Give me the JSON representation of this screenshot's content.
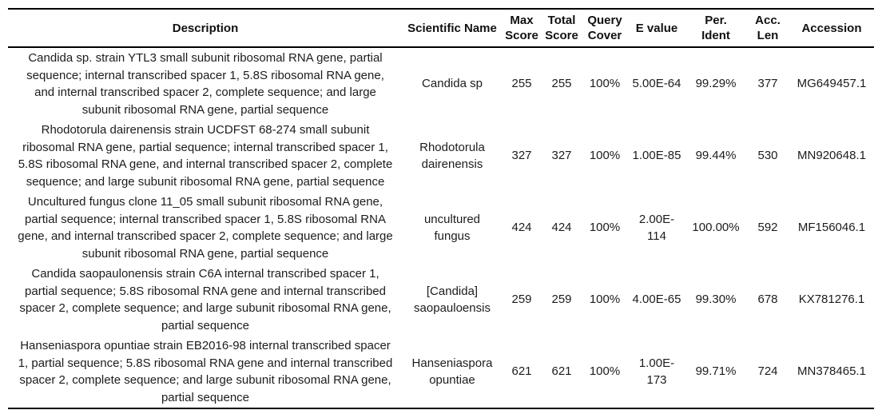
{
  "table": {
    "columns": [
      {
        "id": "description",
        "label": "Description"
      },
      {
        "id": "scientific_name",
        "label": "Scientific Name"
      },
      {
        "id": "max_score",
        "label": "Max\nScore"
      },
      {
        "id": "total_score",
        "label": "Total\nScore"
      },
      {
        "id": "query_cover",
        "label": "Query\nCover"
      },
      {
        "id": "e_value",
        "label": "E value"
      },
      {
        "id": "per_ident",
        "label": "Per.\nIdent"
      },
      {
        "id": "acc_len",
        "label": "Acc.\nLen"
      },
      {
        "id": "accession",
        "label": "Accession"
      }
    ],
    "rows": [
      {
        "description": "Candida sp. strain YTL3 small subunit ribosomal RNA gene, partial sequence; internal transcribed spacer 1, 5.8S ribosomal RNA gene, and internal transcribed spacer 2, complete sequence; and large subunit ribosomal RNA gene, partial sequence",
        "scientific_name": "Candida sp",
        "max_score": "255",
        "total_score": "255",
        "query_cover": "100%",
        "e_value": "5.00E-64",
        "per_ident": "99.29%",
        "acc_len": "377",
        "accession": "MG649457.1"
      },
      {
        "description": "Rhodotorula dairenensis strain UCDFST 68-274 small subunit ribosomal RNA gene, partial sequence; internal transcribed spacer 1, 5.8S ribosomal RNA gene, and internal transcribed spacer 2, complete sequence; and large subunit ribosomal RNA gene, partial sequence",
        "scientific_name": "Rhodotorula dairenensis",
        "max_score": "327",
        "total_score": "327",
        "query_cover": "100%",
        "e_value": "1.00E-85",
        "per_ident": "99.44%",
        "acc_len": "530",
        "accession": "MN920648.1"
      },
      {
        "description": "Uncultured fungus clone 11_05 small subunit ribosomal RNA gene, partial sequence; internal transcribed spacer 1, 5.8S ribosomal RNA gene, and internal transcribed spacer 2, complete sequence; and large subunit ribosomal RNA gene, partial sequence",
        "scientific_name": "uncultured fungus",
        "max_score": "424",
        "total_score": "424",
        "query_cover": "100%",
        "e_value": "2.00E-114",
        "per_ident": "100.00%",
        "acc_len": "592",
        "accession": "MF156046.1"
      },
      {
        "description": "Candida saopaulonensis strain C6A internal transcribed spacer 1, partial sequence; 5.8S ribosomal RNA gene and internal transcribed spacer 2, complete sequence; and large subunit ribosomal RNA gene, partial sequence",
        "scientific_name": "[Candida] saopauloensis",
        "max_score": "259",
        "total_score": "259",
        "query_cover": "100%",
        "e_value": "4.00E-65",
        "per_ident": "99.30%",
        "acc_len": "678",
        "accession": "KX781276.1"
      },
      {
        "description": "Hanseniaspora opuntiae strain EB2016-98 internal transcribed spacer 1, partial sequence; 5.8S ribosomal RNA gene and internal transcribed spacer 2, complete sequence; and large subunit ribosomal RNA gene, partial sequence",
        "scientific_name": "Hanseniaspora opuntiae",
        "max_score": "621",
        "total_score": "621",
        "query_cover": "100%",
        "e_value": "1.00E-173",
        "per_ident": "99.71%",
        "acc_len": "724",
        "accession": "MN378465.1"
      }
    ]
  },
  "colors": {
    "text": "#1c1c1c",
    "border": "#000000",
    "background": "#ffffff"
  }
}
